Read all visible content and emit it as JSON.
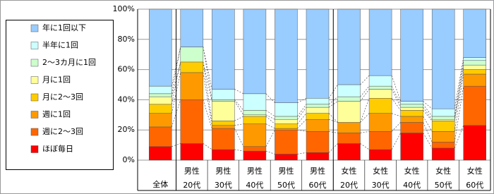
{
  "chart_data": {
    "type": "stacked-bar-100",
    "categories": [
      [
        "全体"
      ],
      [
        "男性",
        "20代"
      ],
      [
        "男性",
        "30代"
      ],
      [
        "男性",
        "40代"
      ],
      [
        "男性",
        "50代"
      ],
      [
        "男性",
        "60代"
      ],
      [
        "女性",
        "20代"
      ],
      [
        "女性",
        "30代"
      ],
      [
        "女性",
        "40代"
      ],
      [
        "女性",
        "50代"
      ],
      [
        "女性",
        "60代"
      ]
    ],
    "series": [
      {
        "name": "ほぼ毎日",
        "color": "#ff0000",
        "values": [
          9,
          11,
          7,
          6,
          4,
          5,
          11,
          7,
          18,
          8,
          23
        ]
      },
      {
        "name": "週に2～3回",
        "color": "#ff6600",
        "values": [
          13,
          29,
          14,
          3,
          16,
          14,
          7,
          12,
          7,
          4,
          26
        ]
      },
      {
        "name": "週に1回",
        "color": "#ff9900",
        "values": [
          9,
          18,
          2,
          15,
          1,
          8,
          7,
          12,
          4,
          7,
          8
        ]
      },
      {
        "name": "月に2～3回",
        "color": "#ffcc00",
        "values": [
          6,
          7,
          3,
          5,
          3,
          4,
          0,
          10,
          4,
          7,
          3
        ]
      },
      {
        "name": "月に1回",
        "color": "#ffff99",
        "values": [
          5,
          0,
          13,
          1,
          3,
          4,
          14,
          6,
          2,
          1,
          3
        ]
      },
      {
        "name": "2～3カ月に1回",
        "color": "#ccffcc",
        "values": [
          2,
          10,
          1,
          3,
          2,
          2,
          3,
          2,
          2,
          2,
          3
        ]
      },
      {
        "name": "半年に1回",
        "color": "#ccffff",
        "values": [
          5,
          0,
          7,
          11,
          9,
          4,
          8,
          7,
          2,
          5,
          2
        ]
      },
      {
        "name": "年に1回以下",
        "color": "#99ccff",
        "values": [
          51,
          25,
          53,
          56,
          62,
          59,
          50,
          44,
          61,
          66,
          32
        ]
      }
    ],
    "ylim": [
      0,
      100
    ],
    "yticks": [
      {
        "value": 0,
        "label": "0%"
      },
      {
        "value": 20,
        "label": "20%"
      },
      {
        "value": 40,
        "label": "40%"
      },
      {
        "value": 60,
        "label": "60%"
      },
      {
        "value": 80,
        "label": "80%"
      },
      {
        "value": 100,
        "label": "100%"
      }
    ],
    "grid": true
  }
}
